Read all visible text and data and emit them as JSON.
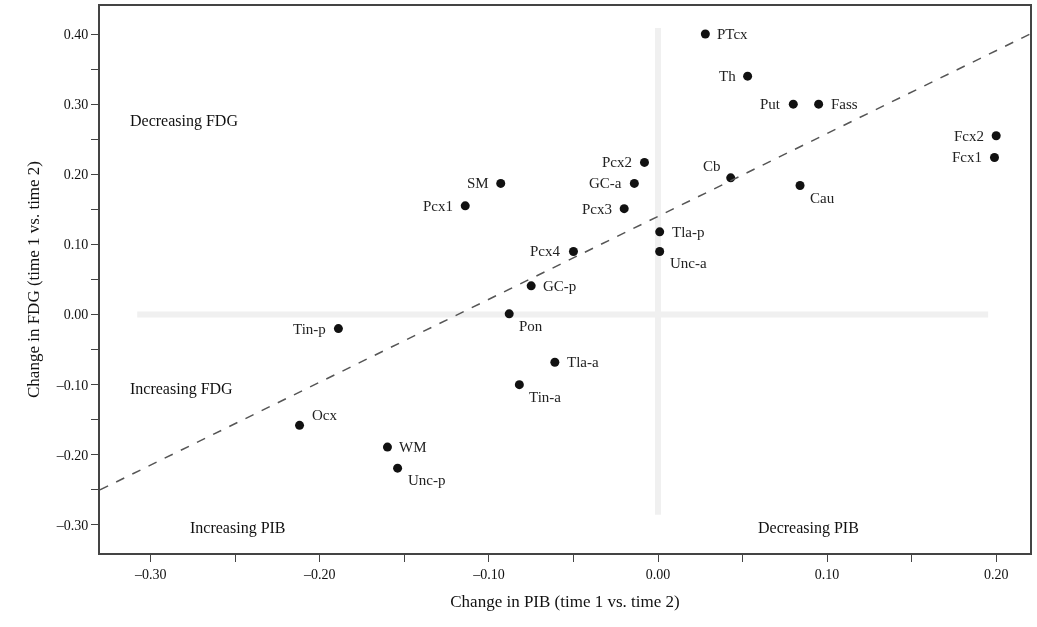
{
  "chart_data": {
    "type": "scatter",
    "xlabel": "Change in PIB (time 1 vs. time 2)",
    "ylabel": "Change in FDG (time 1 vs. time 2)",
    "xlim": [
      -0.33,
      0.22
    ],
    "ylim": [
      -0.34,
      0.44
    ],
    "xticks": [
      {
        "value": -0.3,
        "label": "–0.30"
      },
      {
        "value": -0.25,
        "label": null
      },
      {
        "value": -0.2,
        "label": "–0.20"
      },
      {
        "value": -0.15,
        "label": null
      },
      {
        "value": -0.1,
        "label": "–0.10"
      },
      {
        "value": -0.05,
        "label": null
      },
      {
        "value": 0,
        "label": "0.00"
      },
      {
        "value": 0.05,
        "label": null
      },
      {
        "value": 0.1,
        "label": "0.10"
      },
      {
        "value": 0.15,
        "label": null
      },
      {
        "value": 0.2,
        "label": "0.20"
      }
    ],
    "yticks": [
      {
        "value": -0.3,
        "label": "–0.30"
      },
      {
        "value": -0.25,
        "label": null
      },
      {
        "value": -0.2,
        "label": "–0.20"
      },
      {
        "value": -0.15,
        "label": null
      },
      {
        "value": -0.1,
        "label": "–0.10"
      },
      {
        "value": -0.05,
        "label": null
      },
      {
        "value": 0,
        "label": "0.00"
      },
      {
        "value": 0.05,
        "label": null
      },
      {
        "value": 0.1,
        "label": "0.10"
      },
      {
        "value": 0.15,
        "label": null
      },
      {
        "value": 0.2,
        "label": "0.20"
      },
      {
        "value": 0.25,
        "label": null
      },
      {
        "value": 0.3,
        "label": "0.30"
      },
      {
        "value": 0.35,
        "label": null
      },
      {
        "value": 0.4,
        "label": "0.40"
      }
    ],
    "grid": false,
    "marker": "circle",
    "series": [
      {
        "type": "scatter",
        "color": "#111111",
        "x": [
          0.028,
          0.053,
          0.08,
          0.095,
          0.2,
          0.199,
          -0.008,
          -0.014,
          -0.02,
          0.043,
          0.084,
          0.001,
          0.001,
          -0.05,
          -0.075,
          -0.088,
          -0.093,
          -0.114,
          -0.189,
          -0.061,
          -0.082,
          -0.212,
          -0.16,
          -0.154
        ],
        "values": [
          0.4,
          0.34,
          0.3,
          0.3,
          0.255,
          0.224,
          0.217,
          0.187,
          0.151,
          0.195,
          0.184,
          0.118,
          0.09,
          0.09,
          0.041,
          0.001,
          0.187,
          0.155,
          -0.02,
          -0.068,
          -0.1,
          -0.158,
          -0.189,
          -0.219
        ]
      },
      {
        "type": "line",
        "color": "#555555",
        "line_style": "dashed",
        "marker": "none",
        "x": [
          -0.33,
          0.22
        ],
        "values": [
          -0.25,
          0.4
        ]
      }
    ],
    "ref_lines": [
      {
        "axis": "x",
        "value": 0,
        "color": "#f0f0f0"
      },
      {
        "axis": "y",
        "value": 0,
        "color": "#f0f0f0"
      }
    ],
    "annotations": [
      "Decreasing FDG",
      "Increasing FDG",
      "Increasing PIB",
      "Decreasing PIB",
      {
        "text": "PTcx",
        "x": 0.028,
        "y": 0.4
      },
      {
        "text": "Th",
        "x": 0.053,
        "y": 0.34
      },
      {
        "text": "Put",
        "x": 0.08,
        "y": 0.3
      },
      {
        "text": "Fass",
        "x": 0.095,
        "y": 0.3
      },
      {
        "text": "Fcx2",
        "x": 0.2,
        "y": 0.255
      },
      {
        "text": "Fcx1",
        "x": 0.199,
        "y": 0.224
      },
      {
        "text": "Pcx2",
        "x": -0.008,
        "y": 0.217
      },
      {
        "text": "GC-a",
        "x": -0.014,
        "y": 0.187
      },
      {
        "text": "Pcx3",
        "x": -0.02,
        "y": 0.151
      },
      {
        "text": "Cb",
        "x": 0.043,
        "y": 0.195
      },
      {
        "text": "Cau",
        "x": 0.084,
        "y": 0.184
      },
      {
        "text": "Tla-p",
        "x": 0.001,
        "y": 0.118
      },
      {
        "text": "Unc-a",
        "x": 0.001,
        "y": 0.09
      },
      {
        "text": "Pcx4",
        "x": -0.05,
        "y": 0.09
      },
      {
        "text": "GC-p",
        "x": -0.075,
        "y": 0.041
      },
      {
        "text": "Pon",
        "x": -0.088,
        "y": 0.001
      },
      {
        "text": "SM",
        "x": -0.093,
        "y": 0.187
      },
      {
        "text": "Pcx1",
        "x": -0.114,
        "y": 0.155
      },
      {
        "text": "Tin-p",
        "x": -0.189,
        "y": -0.02
      },
      {
        "text": "Tla-a",
        "x": -0.061,
        "y": -0.068
      },
      {
        "text": "Tin-a",
        "x": -0.082,
        "y": -0.1
      },
      {
        "text": "Ocx",
        "x": -0.212,
        "y": -0.158
      },
      {
        "text": "WM",
        "x": -0.16,
        "y": -0.189
      },
      {
        "text": "Unc-p",
        "x": -0.154,
        "y": -0.219
      }
    ]
  }
}
